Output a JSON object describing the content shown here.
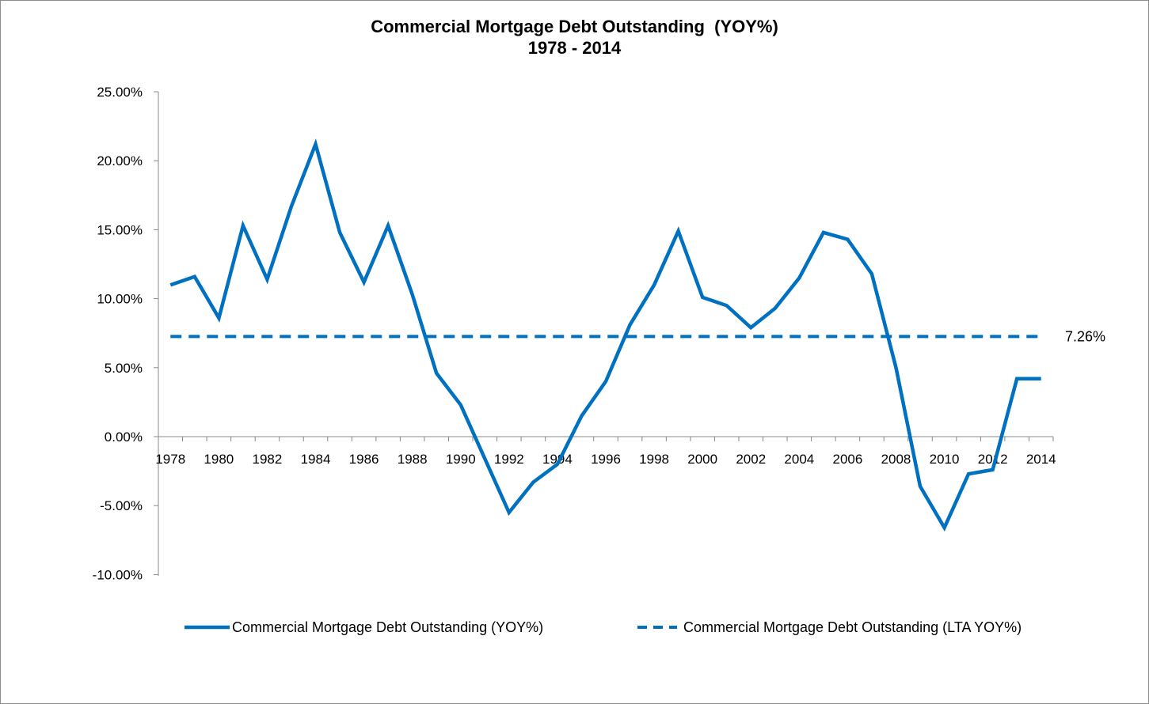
{
  "chart_data": {
    "type": "line",
    "title": "Commercial Mortgage Debt Outstanding  (YOY%)",
    "subtitle": "1978 - 2014",
    "xlabel": "",
    "ylabel": "",
    "x": [
      1978,
      1979,
      1980,
      1981,
      1982,
      1983,
      1984,
      1985,
      1986,
      1987,
      1988,
      1989,
      1990,
      1991,
      1992,
      1993,
      1994,
      1995,
      1996,
      1997,
      1998,
      1999,
      2000,
      2001,
      2002,
      2003,
      2004,
      2005,
      2006,
      2007,
      2008,
      2009,
      2010,
      2011,
      2012,
      2013,
      2014
    ],
    "x_tick_labels": [
      "1978",
      "1980",
      "1982",
      "1984",
      "1986",
      "1988",
      "1990",
      "1992",
      "1994",
      "1996",
      "1998",
      "2000",
      "2002",
      "2004",
      "2006",
      "2008",
      "2010",
      "2012",
      "2014"
    ],
    "y_tick_labels": [
      "25.00%",
      "20.00%",
      "15.00%",
      "10.00%",
      "5.00%",
      "0.00%",
      "-5.00%",
      "-10.00%"
    ],
    "ylim": [
      -10,
      25
    ],
    "series": [
      {
        "name": "Commercial Mortgage Debt Outstanding (YOY%)",
        "style": "solid",
        "color": "#0070c0",
        "values": [
          11.0,
          11.6,
          8.6,
          15.3,
          11.4,
          16.7,
          21.2,
          14.8,
          11.2,
          15.3,
          10.3,
          4.6,
          2.3,
          -1.6,
          -5.5,
          -3.3,
          -2.0,
          1.5,
          4.0,
          8.1,
          11.0,
          14.9,
          10.1,
          9.5,
          7.9,
          9.3,
          11.5,
          14.8,
          14.3,
          11.8,
          5.0,
          -3.6,
          -6.6,
          -2.7,
          -2.4,
          4.2,
          4.2
        ]
      },
      {
        "name": "Commercial Mortgage Debt Outstanding (LTA YOY%)",
        "style": "dashed",
        "color": "#0070c0",
        "value": 7.26,
        "label": "7.26%"
      }
    ],
    "legend_position": "bottom",
    "grid": false
  }
}
